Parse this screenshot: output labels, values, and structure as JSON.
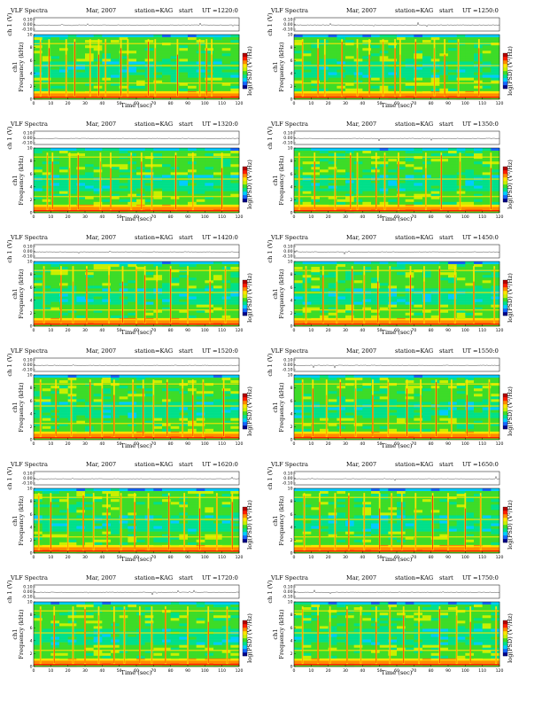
{
  "page": {
    "background": "#ffffff"
  },
  "colorbar": {
    "label": "log(PSD) (V²/Hz)",
    "colors": [
      "#00008b",
      "#1565ff",
      "#00ccff",
      "#00e08a",
      "#3ddc28",
      "#c8f000",
      "#ffe400",
      "#ff8a00",
      "#ff1e00",
      "#b40000"
    ]
  },
  "chart_data": [
    {
      "type": "heatmap",
      "title": "VLF Spectra",
      "date": "Mar, 2007",
      "station": "station=KAG",
      "start_label": "start",
      "ut": "UT =1220:0",
      "ch_label": "ch 1 (V)",
      "ch_ticks": [
        "0.10",
        "0.00",
        "-0.10"
      ],
      "ylabel_top": "ch1",
      "ylabel": "Frequency (kHz)",
      "xlabel": "Time (sec)",
      "xlim": [
        0,
        120
      ],
      "ylim": [
        0,
        10
      ],
      "x_ticks": [
        "0",
        "10",
        "20",
        "30",
        "40",
        "50",
        "60",
        "70",
        "80",
        "90",
        "100",
        "110",
        "120"
      ],
      "y_ticks": [
        "0",
        "2",
        "4",
        "6",
        "8",
        "10"
      ],
      "colorbar_label": "log(PSD) (V²/Hz)",
      "bursts": [
        4,
        9,
        19,
        24,
        33,
        38,
        42,
        51,
        55,
        67,
        71,
        84,
        97,
        101,
        104
      ],
      "bands": [
        1,
        2.5,
        5.2,
        8.6
      ]
    },
    {
      "type": "heatmap",
      "title": "VLF Spectra",
      "date": "Mar, 2007",
      "station": "station=KAG",
      "start_label": "start",
      "ut": "UT =1250:0",
      "ch_label": "ch 1 (V)",
      "ch_ticks": [
        "0.10",
        "0.00",
        "-0.10"
      ],
      "ylabel_top": "ch1",
      "ylabel": "Frequency (kHz)",
      "xlabel": "Time (sec)",
      "xlim": [
        0,
        120
      ],
      "ylim": [
        0,
        10
      ],
      "x_ticks": [
        "0",
        "10",
        "20",
        "30",
        "40",
        "50",
        "60",
        "70",
        "80",
        "90",
        "100",
        "110",
        "120"
      ],
      "y_ticks": [
        "0",
        "2",
        "4",
        "6",
        "8",
        "10"
      ],
      "colorbar_label": "log(PSD) (V²/Hz)",
      "bursts": [
        5,
        14,
        18,
        28,
        37,
        44,
        52,
        59,
        62,
        71,
        82,
        88,
        96,
        108
      ],
      "bands": [
        1,
        2.5,
        5.2,
        8.6
      ]
    },
    {
      "type": "heatmap",
      "title": "VLF Spectra",
      "date": "Mar, 2007",
      "station": "station=KAG",
      "start_label": "start",
      "ut": "UT =1320:0",
      "ch_label": "ch 1 (V)",
      "ch_ticks": [
        "0.10",
        "0.00",
        "-0.10"
      ],
      "ylabel_top": "ch1",
      "ylabel": "Frequency (kHz)",
      "xlabel": "Time (sec)",
      "xlim": [
        0,
        120
      ],
      "ylim": [
        0,
        10
      ],
      "x_ticks": [
        "0",
        "10",
        "20",
        "30",
        "40",
        "50",
        "60",
        "70",
        "80",
        "90",
        "100",
        "110",
        "120"
      ],
      "y_ticks": [
        "0",
        "2",
        "4",
        "6",
        "8",
        "10"
      ],
      "colorbar_label": "log(PSD) (V²/Hz)",
      "bursts": [
        8,
        11,
        21,
        26,
        39,
        45,
        57,
        63,
        69,
        83,
        93,
        110
      ],
      "bands": [
        1,
        2.5,
        5.2,
        8.6
      ]
    },
    {
      "type": "heatmap",
      "title": "VLF Spectra",
      "date": "Mar, 2007",
      "station": "station=KAG",
      "start_label": "start",
      "ut": "UT =1350:0",
      "ch_label": "ch 1 (V)",
      "ch_ticks": [
        "0.10",
        "0.00",
        "-0.10"
      ],
      "ylabel_top": "ch1",
      "ylabel": "Frequency (kHz)",
      "xlabel": "Time (sec)",
      "xlim": [
        0,
        120
      ],
      "ylim": [
        0,
        10
      ],
      "x_ticks": [
        "0",
        "10",
        "20",
        "30",
        "40",
        "50",
        "60",
        "70",
        "80",
        "90",
        "100",
        "110",
        "120"
      ],
      "y_ticks": [
        "0",
        "2",
        "4",
        "6",
        "8",
        "10"
      ],
      "colorbar_label": "log(PSD) (V²/Hz)",
      "bursts": [
        3,
        12,
        24,
        33,
        37,
        48,
        53,
        61,
        77,
        86,
        97,
        115
      ],
      "bands": [
        1,
        2.5,
        5.2,
        8.6
      ]
    },
    {
      "type": "heatmap",
      "title": "VLF Spectra",
      "date": "Mar, 2007",
      "station": "station=KAG",
      "start_label": "start",
      "ut": "UT =1420:0",
      "ch_label": "ch 1 (V)",
      "ch_ticks": [
        "0.10",
        "0.00",
        "-0.10"
      ],
      "ylabel_top": "ch1",
      "ylabel": "Frequency (kHz)",
      "xlabel": "Time (sec)",
      "xlim": [
        0,
        120
      ],
      "ylim": [
        0,
        10
      ],
      "x_ticks": [
        "0",
        "10",
        "20",
        "30",
        "40",
        "50",
        "60",
        "70",
        "80",
        "90",
        "100",
        "110",
        "120"
      ],
      "y_ticks": [
        "0",
        "2",
        "4",
        "6",
        "8",
        "10"
      ],
      "colorbar_label": "log(PSD) (V²/Hz)",
      "bursts": [
        6,
        16,
        23,
        31,
        44,
        52,
        60,
        65,
        72,
        80,
        90,
        103,
        112
      ],
      "bands": [
        1,
        2.5,
        5.2,
        8.6
      ]
    },
    {
      "type": "heatmap",
      "title": "VLF Spectra",
      "date": "Mar, 2007",
      "station": "station=KAG",
      "start_label": "start",
      "ut": "UT =1450:0",
      "ch_label": "ch 1 (V)",
      "ch_ticks": [
        "0.10",
        "0.00",
        "-0.10"
      ],
      "ylabel_top": "ch1",
      "ylabel": "Frequency (kHz)",
      "xlabel": "Time (sec)",
      "xlim": [
        0,
        120
      ],
      "ylim": [
        0,
        10
      ],
      "x_ticks": [
        "0",
        "10",
        "20",
        "30",
        "40",
        "50",
        "60",
        "70",
        "80",
        "90",
        "100",
        "110",
        "120"
      ],
      "y_ticks": [
        "0",
        "2",
        "4",
        "6",
        "8",
        "10"
      ],
      "colorbar_label": "log(PSD) (V²/Hz)",
      "bursts": [
        7,
        17,
        25,
        34,
        41,
        49,
        56,
        68,
        76,
        85,
        94,
        105,
        117
      ],
      "bands": [
        1,
        2.5,
        5.2,
        8.6
      ]
    },
    {
      "type": "heatmap",
      "title": "VLF Spectra",
      "date": "Mar, 2007",
      "station": "station=KAG",
      "start_label": "start",
      "ut": "UT =1520:0",
      "ch_label": "ch 1 (V)",
      "ch_ticks": [
        "0.10",
        "0.00",
        "-0.10"
      ],
      "ylabel_top": "ch1",
      "ylabel": "Frequency (kHz)",
      "xlabel": "Time (sec)",
      "xlim": [
        0,
        120
      ],
      "ylim": [
        0,
        10
      ],
      "x_ticks": [
        "0",
        "10",
        "20",
        "30",
        "40",
        "50",
        "60",
        "70",
        "80",
        "90",
        "100",
        "110",
        "120"
      ],
      "y_ticks": [
        "0",
        "2",
        "4",
        "6",
        "8",
        "10"
      ],
      "colorbar_label": "log(PSD) (V²/Hz)",
      "bursts": [
        4,
        13,
        22,
        33,
        40,
        47,
        58,
        64,
        70,
        78,
        87,
        93,
        99,
        111
      ],
      "bands": [
        1,
        2.5,
        5.2,
        8.6
      ]
    },
    {
      "type": "heatmap",
      "title": "VLF Spectra",
      "date": "Mar, 2007",
      "station": "station=KAG",
      "start_label": "start",
      "ut": "UT =1550:0",
      "ch_label": "ch 1 (V)",
      "ch_ticks": [
        "0.10",
        "0.00",
        "-0.10"
      ],
      "ylabel_top": "ch1",
      "ylabel": "Frequency (kHz)",
      "xlabel": "Time (sec)",
      "xlim": [
        0,
        120
      ],
      "ylim": [
        0,
        10
      ],
      "x_ticks": [
        "0",
        "10",
        "20",
        "30",
        "40",
        "50",
        "60",
        "70",
        "80",
        "90",
        "100",
        "110",
        "120"
      ],
      "y_ticks": [
        "0",
        "2",
        "4",
        "6",
        "8",
        "10"
      ],
      "colorbar_label": "log(PSD) (V²/Hz)",
      "bursts": [
        5,
        11,
        19,
        27,
        36,
        46,
        55,
        66,
        74,
        83,
        92,
        101,
        114
      ],
      "bands": [
        1,
        2.5,
        5.2,
        8.6
      ]
    },
    {
      "type": "heatmap",
      "title": "VLF Spectra",
      "date": "Mar, 2007",
      "station": "station=KAG",
      "start_label": "start",
      "ut": "UT =1620:0",
      "ch_label": "ch 1 (V)",
      "ch_ticks": [
        "0.10",
        "0.00",
        "-0.10"
      ],
      "ylabel_top": "ch1",
      "ylabel": "Frequency (kHz)",
      "xlabel": "Time (sec)",
      "xlim": [
        0,
        120
      ],
      "ylim": [
        0,
        10
      ],
      "x_ticks": [
        "0",
        "10",
        "20",
        "30",
        "40",
        "50",
        "60",
        "70",
        "80",
        "90",
        "100",
        "110",
        "120"
      ],
      "y_ticks": [
        "0",
        "2",
        "4",
        "6",
        "8",
        "10"
      ],
      "colorbar_label": "log(PSD) (V²/Hz)",
      "bursts": [
        3,
        10,
        20,
        29,
        35,
        43,
        51,
        59,
        67,
        79,
        88,
        97,
        107,
        116
      ],
      "bands": [
        1,
        2.5,
        5.2,
        8.6
      ]
    },
    {
      "type": "heatmap",
      "title": "VLF Spectra",
      "date": "Mar, 2007",
      "station": "station=KAG",
      "start_label": "start",
      "ut": "UT =1650:0",
      "ch_label": "ch 1 (V)",
      "ch_ticks": [
        "0.10",
        "0.00",
        "-0.10"
      ],
      "ylabel_top": "ch1",
      "ylabel": "Frequency (kHz)",
      "xlabel": "Time (sec)",
      "xlim": [
        0,
        120
      ],
      "ylim": [
        0,
        10
      ],
      "x_ticks": [
        "0",
        "10",
        "20",
        "30",
        "40",
        "50",
        "60",
        "70",
        "80",
        "90",
        "100",
        "110",
        "120"
      ],
      "y_ticks": [
        "0",
        "2",
        "4",
        "6",
        "8",
        "10"
      ],
      "colorbar_label": "log(PSD) (V²/Hz)",
      "bursts": [
        6,
        15,
        24,
        32,
        41,
        50,
        57,
        63,
        71,
        81,
        90,
        100,
        109
      ],
      "bands": [
        1,
        2.5,
        5.2,
        8.6
      ]
    },
    {
      "type": "heatmap",
      "title": "VLF Spectra",
      "date": "Mar, 2007",
      "station": "station=KAG",
      "start_label": "start",
      "ut": "UT =1720:0",
      "ch_label": "ch 1 (V)",
      "ch_ticks": [
        "0.10",
        "0.00",
        "-0.10"
      ],
      "ylabel_top": "ch1",
      "ylabel": "Frequency (kHz)",
      "xlabel": "Time (sec)",
      "xlim": [
        0,
        120
      ],
      "ylim": [
        0,
        10
      ],
      "x_ticks": [
        "0",
        "10",
        "20",
        "30",
        "40",
        "50",
        "60",
        "70",
        "80",
        "90",
        "100",
        "110",
        "120"
      ],
      "y_ticks": [
        "0",
        "2",
        "4",
        "6",
        "8",
        "10"
      ],
      "colorbar_label": "log(PSD) (V²/Hz)",
      "bursts": [
        4,
        12,
        23,
        30,
        38,
        47,
        53,
        62,
        69,
        77,
        90,
        102,
        113
      ],
      "bands": [
        1,
        2.5,
        5.2,
        8.6
      ]
    },
    {
      "type": "heatmap",
      "title": "VLF Spectra",
      "date": "Mar, 2007",
      "station": "station=KAG",
      "start_label": "start",
      "ut": "UT =1750:0",
      "ch_label": "ch 1 (V)",
      "ch_ticks": [
        "0.10",
        "0.00",
        "-0.10"
      ],
      "ylabel_top": "ch1",
      "ylabel": "Frequency (kHz)",
      "xlabel": "Time (sec)",
      "xlim": [
        0,
        120
      ],
      "ylim": [
        0,
        10
      ],
      "x_ticks": [
        "0",
        "10",
        "20",
        "30",
        "40",
        "50",
        "60",
        "70",
        "80",
        "90",
        "100",
        "110",
        "120"
      ],
      "y_ticks": [
        "0",
        "2",
        "4",
        "6",
        "8",
        "10"
      ],
      "colorbar_label": "log(PSD) (V²/Hz)",
      "bursts": [
        5,
        14,
        21,
        31,
        39,
        48,
        56,
        64,
        73,
        85,
        95,
        103,
        118
      ],
      "bands": [
        1,
        2.5,
        5.2,
        8.6
      ]
    }
  ]
}
